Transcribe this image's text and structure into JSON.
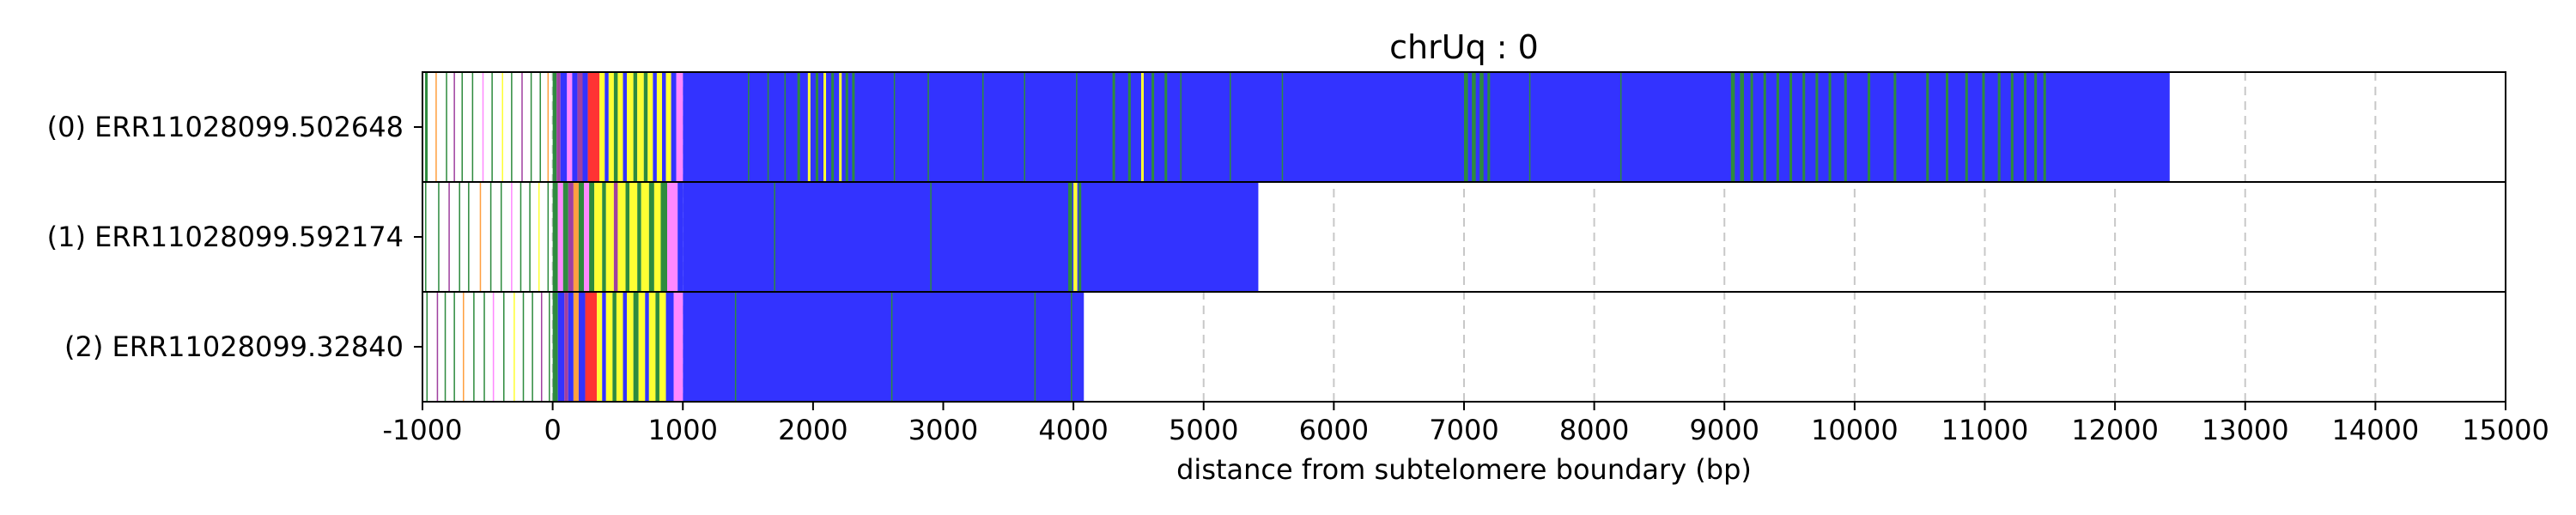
{
  "chart_data": {
    "type": "bar",
    "title": "chrUq : 0",
    "xlabel": "distance from subtelomere boundary (bp)",
    "ylabel": "",
    "xlim": [
      -1000,
      15000
    ],
    "x_ticks": [
      -1000,
      0,
      1000,
      2000,
      3000,
      4000,
      5000,
      6000,
      7000,
      8000,
      9000,
      10000,
      11000,
      12000,
      13000,
      14000,
      15000
    ],
    "grid": "x dashed",
    "colors": {
      "repeat_body": "#3333ff",
      "green": "#2e8b3e",
      "yellow": "#ffff33",
      "red": "#ff3333",
      "pink": "#ff88ff",
      "orange": "#ffa040",
      "purple": "#a040a0",
      "grid": "#c8c8c8"
    },
    "reads": [
      {
        "label": "(0) ERR11028099.502648",
        "end": 12420,
        "blue_start": 1000,
        "segments": [
          {
            "start": -980,
            "end": -960,
            "color": "green"
          },
          {
            "start": -900,
            "end": -890,
            "color": "orange"
          },
          {
            "start": -820,
            "end": -810,
            "color": "green"
          },
          {
            "start": -760,
            "end": -750,
            "color": "purple"
          },
          {
            "start": -700,
            "end": -690,
            "color": "green"
          },
          {
            "start": -620,
            "end": -610,
            "color": "green"
          },
          {
            "start": -540,
            "end": -530,
            "color": "pink"
          },
          {
            "start": -470,
            "end": -460,
            "color": "green"
          },
          {
            "start": -390,
            "end": -380,
            "color": "yellow"
          },
          {
            "start": -320,
            "end": -310,
            "color": "green"
          },
          {
            "start": -240,
            "end": -230,
            "color": "purple"
          },
          {
            "start": -170,
            "end": -160,
            "color": "green"
          },
          {
            "start": -100,
            "end": -90,
            "color": "green"
          },
          {
            "start": -40,
            "end": -30,
            "color": "orange"
          },
          {
            "start": 0,
            "end": 30,
            "color": "green"
          },
          {
            "start": 30,
            "end": 60,
            "color": "purple"
          },
          {
            "start": 60,
            "end": 110,
            "color": "repeat_body"
          },
          {
            "start": 110,
            "end": 150,
            "color": "pink"
          },
          {
            "start": 150,
            "end": 190,
            "color": "repeat_body"
          },
          {
            "start": 190,
            "end": 230,
            "color": "purple"
          },
          {
            "start": 230,
            "end": 270,
            "color": "repeat_body"
          },
          {
            "start": 270,
            "end": 360,
            "color": "red"
          },
          {
            "start": 360,
            "end": 400,
            "color": "yellow"
          },
          {
            "start": 400,
            "end": 430,
            "color": "repeat_body"
          },
          {
            "start": 430,
            "end": 470,
            "color": "yellow"
          },
          {
            "start": 470,
            "end": 500,
            "color": "green"
          },
          {
            "start": 500,
            "end": 540,
            "color": "yellow"
          },
          {
            "start": 540,
            "end": 570,
            "color": "repeat_body"
          },
          {
            "start": 570,
            "end": 620,
            "color": "yellow"
          },
          {
            "start": 620,
            "end": 650,
            "color": "green"
          },
          {
            "start": 650,
            "end": 700,
            "color": "yellow"
          },
          {
            "start": 700,
            "end": 730,
            "color": "green"
          },
          {
            "start": 730,
            "end": 770,
            "color": "yellow"
          },
          {
            "start": 770,
            "end": 800,
            "color": "repeat_body"
          },
          {
            "start": 800,
            "end": 840,
            "color": "yellow"
          },
          {
            "start": 840,
            "end": 870,
            "color": "repeat_body"
          },
          {
            "start": 870,
            "end": 910,
            "color": "yellow"
          },
          {
            "start": 910,
            "end": 950,
            "color": "repeat_body"
          },
          {
            "start": 950,
            "end": 1000,
            "color": "pink"
          },
          {
            "start": 1500,
            "end": 1510,
            "color": "green"
          },
          {
            "start": 1650,
            "end": 1660,
            "color": "green"
          },
          {
            "start": 1780,
            "end": 1790,
            "color": "green"
          },
          {
            "start": 1880,
            "end": 1900,
            "color": "green"
          },
          {
            "start": 1960,
            "end": 1980,
            "color": "yellow"
          },
          {
            "start": 2020,
            "end": 2040,
            "color": "green"
          },
          {
            "start": 2080,
            "end": 2100,
            "color": "yellow"
          },
          {
            "start": 2140,
            "end": 2160,
            "color": "green"
          },
          {
            "start": 2200,
            "end": 2220,
            "color": "yellow"
          },
          {
            "start": 2250,
            "end": 2270,
            "color": "green"
          },
          {
            "start": 2300,
            "end": 2320,
            "color": "green"
          },
          {
            "start": 2620,
            "end": 2630,
            "color": "green"
          },
          {
            "start": 2880,
            "end": 2890,
            "color": "green"
          },
          {
            "start": 3300,
            "end": 3310,
            "color": "green"
          },
          {
            "start": 3620,
            "end": 3630,
            "color": "green"
          },
          {
            "start": 4020,
            "end": 4030,
            "color": "green"
          },
          {
            "start": 4300,
            "end": 4320,
            "color": "green"
          },
          {
            "start": 4420,
            "end": 4440,
            "color": "green"
          },
          {
            "start": 4520,
            "end": 4540,
            "color": "yellow"
          },
          {
            "start": 4600,
            "end": 4620,
            "color": "green"
          },
          {
            "start": 4700,
            "end": 4720,
            "color": "green"
          },
          {
            "start": 4820,
            "end": 4830,
            "color": "green"
          },
          {
            "start": 5200,
            "end": 5210,
            "color": "green"
          },
          {
            "start": 5600,
            "end": 5610,
            "color": "green"
          },
          {
            "start": 7000,
            "end": 7030,
            "color": "green"
          },
          {
            "start": 7060,
            "end": 7090,
            "color": "green"
          },
          {
            "start": 7120,
            "end": 7150,
            "color": "green"
          },
          {
            "start": 7180,
            "end": 7200,
            "color": "green"
          },
          {
            "start": 7500,
            "end": 7510,
            "color": "green"
          },
          {
            "start": 8200,
            "end": 8210,
            "color": "green"
          },
          {
            "start": 9050,
            "end": 9080,
            "color": "green"
          },
          {
            "start": 9120,
            "end": 9150,
            "color": "green"
          },
          {
            "start": 9200,
            "end": 9220,
            "color": "green"
          },
          {
            "start": 9300,
            "end": 9320,
            "color": "green"
          },
          {
            "start": 9400,
            "end": 9420,
            "color": "green"
          },
          {
            "start": 9500,
            "end": 9520,
            "color": "green"
          },
          {
            "start": 9600,
            "end": 9620,
            "color": "green"
          },
          {
            "start": 9700,
            "end": 9720,
            "color": "green"
          },
          {
            "start": 9800,
            "end": 9820,
            "color": "green"
          },
          {
            "start": 9920,
            "end": 9940,
            "color": "green"
          },
          {
            "start": 10100,
            "end": 10120,
            "color": "green"
          },
          {
            "start": 10300,
            "end": 10320,
            "color": "green"
          },
          {
            "start": 10550,
            "end": 10570,
            "color": "green"
          },
          {
            "start": 10700,
            "end": 10720,
            "color": "green"
          },
          {
            "start": 10850,
            "end": 10870,
            "color": "green"
          },
          {
            "start": 10980,
            "end": 11000,
            "color": "green"
          },
          {
            "start": 11100,
            "end": 11120,
            "color": "green"
          },
          {
            "start": 11200,
            "end": 11220,
            "color": "green"
          },
          {
            "start": 11300,
            "end": 11320,
            "color": "green"
          },
          {
            "start": 11380,
            "end": 11400,
            "color": "green"
          },
          {
            "start": 11450,
            "end": 11470,
            "color": "green"
          }
        ]
      },
      {
        "label": "(1) ERR11028099.592174",
        "end": 5420,
        "blue_start": 1000,
        "segments": [
          {
            "start": -980,
            "end": -970,
            "color": "green"
          },
          {
            "start": -880,
            "end": -870,
            "color": "green"
          },
          {
            "start": -800,
            "end": -790,
            "color": "purple"
          },
          {
            "start": -720,
            "end": -710,
            "color": "green"
          },
          {
            "start": -650,
            "end": -640,
            "color": "green"
          },
          {
            "start": -560,
            "end": -550,
            "color": "orange"
          },
          {
            "start": -480,
            "end": -470,
            "color": "green"
          },
          {
            "start": -400,
            "end": -390,
            "color": "green"
          },
          {
            "start": -320,
            "end": -310,
            "color": "pink"
          },
          {
            "start": -250,
            "end": -240,
            "color": "green"
          },
          {
            "start": -180,
            "end": -170,
            "color": "green"
          },
          {
            "start": -110,
            "end": -100,
            "color": "yellow"
          },
          {
            "start": -40,
            "end": -30,
            "color": "green"
          },
          {
            "start": 0,
            "end": 40,
            "color": "green"
          },
          {
            "start": 40,
            "end": 80,
            "color": "pink"
          },
          {
            "start": 80,
            "end": 120,
            "color": "green"
          },
          {
            "start": 120,
            "end": 160,
            "color": "purple"
          },
          {
            "start": 160,
            "end": 200,
            "color": "orange"
          },
          {
            "start": 200,
            "end": 240,
            "color": "green"
          },
          {
            "start": 240,
            "end": 280,
            "color": "pink"
          },
          {
            "start": 280,
            "end": 320,
            "color": "green"
          },
          {
            "start": 320,
            "end": 380,
            "color": "yellow"
          },
          {
            "start": 380,
            "end": 410,
            "color": "green"
          },
          {
            "start": 410,
            "end": 470,
            "color": "yellow"
          },
          {
            "start": 470,
            "end": 500,
            "color": "purple"
          },
          {
            "start": 500,
            "end": 560,
            "color": "yellow"
          },
          {
            "start": 560,
            "end": 590,
            "color": "green"
          },
          {
            "start": 590,
            "end": 650,
            "color": "yellow"
          },
          {
            "start": 650,
            "end": 680,
            "color": "green"
          },
          {
            "start": 680,
            "end": 740,
            "color": "yellow"
          },
          {
            "start": 740,
            "end": 780,
            "color": "green"
          },
          {
            "start": 780,
            "end": 830,
            "color": "yellow"
          },
          {
            "start": 830,
            "end": 880,
            "color": "green"
          },
          {
            "start": 880,
            "end": 960,
            "color": "pink"
          },
          {
            "start": 960,
            "end": 1000,
            "color": "repeat_body"
          },
          {
            "start": 1700,
            "end": 1710,
            "color": "green"
          },
          {
            "start": 2900,
            "end": 2910,
            "color": "green"
          },
          {
            "start": 3960,
            "end": 3990,
            "color": "green"
          },
          {
            "start": 4000,
            "end": 4030,
            "color": "yellow"
          },
          {
            "start": 4040,
            "end": 4060,
            "color": "green"
          }
        ]
      },
      {
        "label": "(2) ERR11028099.32840",
        "end": 4080,
        "blue_start": 1000,
        "segments": [
          {
            "start": -970,
            "end": -960,
            "color": "green"
          },
          {
            "start": -890,
            "end": -880,
            "color": "purple"
          },
          {
            "start": -830,
            "end": -820,
            "color": "green"
          },
          {
            "start": -760,
            "end": -750,
            "color": "green"
          },
          {
            "start": -690,
            "end": -680,
            "color": "orange"
          },
          {
            "start": -610,
            "end": -600,
            "color": "green"
          },
          {
            "start": -530,
            "end": -520,
            "color": "green"
          },
          {
            "start": -460,
            "end": -450,
            "color": "pink"
          },
          {
            "start": -380,
            "end": -370,
            "color": "green"
          },
          {
            "start": -300,
            "end": -290,
            "color": "yellow"
          },
          {
            "start": -230,
            "end": -220,
            "color": "green"
          },
          {
            "start": -160,
            "end": -150,
            "color": "green"
          },
          {
            "start": -90,
            "end": -80,
            "color": "purple"
          },
          {
            "start": -30,
            "end": -20,
            "color": "green"
          },
          {
            "start": 0,
            "end": 40,
            "color": "green"
          },
          {
            "start": 40,
            "end": 90,
            "color": "repeat_body"
          },
          {
            "start": 90,
            "end": 120,
            "color": "purple"
          },
          {
            "start": 120,
            "end": 160,
            "color": "repeat_body"
          },
          {
            "start": 160,
            "end": 200,
            "color": "orange"
          },
          {
            "start": 200,
            "end": 250,
            "color": "repeat_body"
          },
          {
            "start": 250,
            "end": 340,
            "color": "red"
          },
          {
            "start": 340,
            "end": 380,
            "color": "yellow"
          },
          {
            "start": 380,
            "end": 410,
            "color": "repeat_body"
          },
          {
            "start": 410,
            "end": 460,
            "color": "yellow"
          },
          {
            "start": 460,
            "end": 490,
            "color": "green"
          },
          {
            "start": 490,
            "end": 540,
            "color": "yellow"
          },
          {
            "start": 540,
            "end": 570,
            "color": "repeat_body"
          },
          {
            "start": 570,
            "end": 620,
            "color": "yellow"
          },
          {
            "start": 620,
            "end": 660,
            "color": "green"
          },
          {
            "start": 660,
            "end": 710,
            "color": "yellow"
          },
          {
            "start": 710,
            "end": 740,
            "color": "repeat_body"
          },
          {
            "start": 740,
            "end": 790,
            "color": "yellow"
          },
          {
            "start": 790,
            "end": 820,
            "color": "green"
          },
          {
            "start": 820,
            "end": 870,
            "color": "yellow"
          },
          {
            "start": 870,
            "end": 930,
            "color": "repeat_body"
          },
          {
            "start": 930,
            "end": 1000,
            "color": "pink"
          },
          {
            "start": 1400,
            "end": 1410,
            "color": "green"
          },
          {
            "start": 2600,
            "end": 2610,
            "color": "green"
          },
          {
            "start": 3700,
            "end": 3710,
            "color": "green"
          },
          {
            "start": 3980,
            "end": 3990,
            "color": "green"
          }
        ]
      }
    ]
  }
}
